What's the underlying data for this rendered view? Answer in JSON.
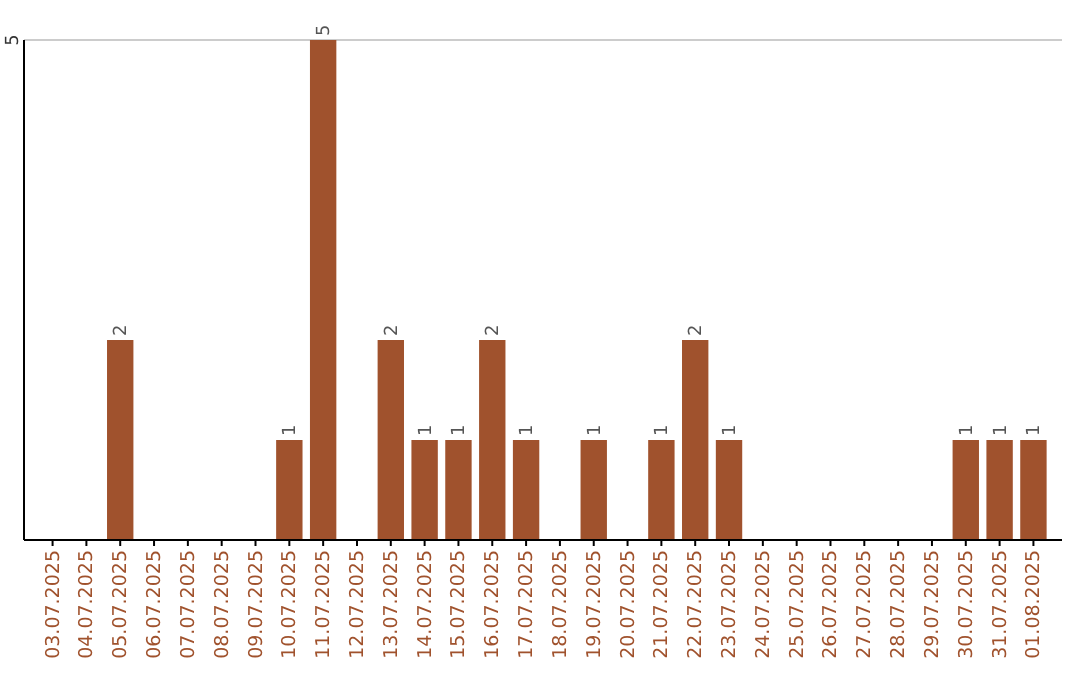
{
  "chart_data": {
    "type": "bar",
    "categories": [
      "03.07.2025",
      "04.07.2025",
      "05.07.2025",
      "06.07.2025",
      "07.07.2025",
      "08.07.2025",
      "09.07.2025",
      "10.07.2025",
      "11.07.2025",
      "12.07.2025",
      "13.07.2025",
      "14.07.2025",
      "15.07.2025",
      "16.07.2025",
      "17.07.2025",
      "18.07.2025",
      "19.07.2025",
      "20.07.2025",
      "21.07.2025",
      "22.07.2025",
      "23.07.2025",
      "24.07.2025",
      "25.07.2025",
      "26.07.2025",
      "27.07.2025",
      "28.07.2025",
      "29.07.2025",
      "30.07.2025",
      "31.07.2025",
      "01.08.2025"
    ],
    "values": [
      0,
      0,
      2,
      0,
      0,
      0,
      0,
      1,
      5,
      0,
      2,
      1,
      1,
      2,
      1,
      0,
      1,
      0,
      1,
      2,
      1,
      0,
      0,
      0,
      0,
      0,
      0,
      1,
      1,
      1
    ],
    "value_labels": [
      null,
      null,
      "2",
      null,
      null,
      null,
      null,
      "1",
      "5",
      null,
      "2",
      "1",
      "1",
      "2",
      "1",
      null,
      "1",
      null,
      "1",
      "2",
      "1",
      null,
      null,
      null,
      null,
      null,
      null,
      "1",
      "1",
      "1"
    ],
    "color": "#a0522d",
    "ylim": [
      0,
      5
    ],
    "yticks": [
      5
    ],
    "ref_lines": [
      {
        "axis": "y",
        "value": 5,
        "color": "#cccccc"
      }
    ]
  }
}
